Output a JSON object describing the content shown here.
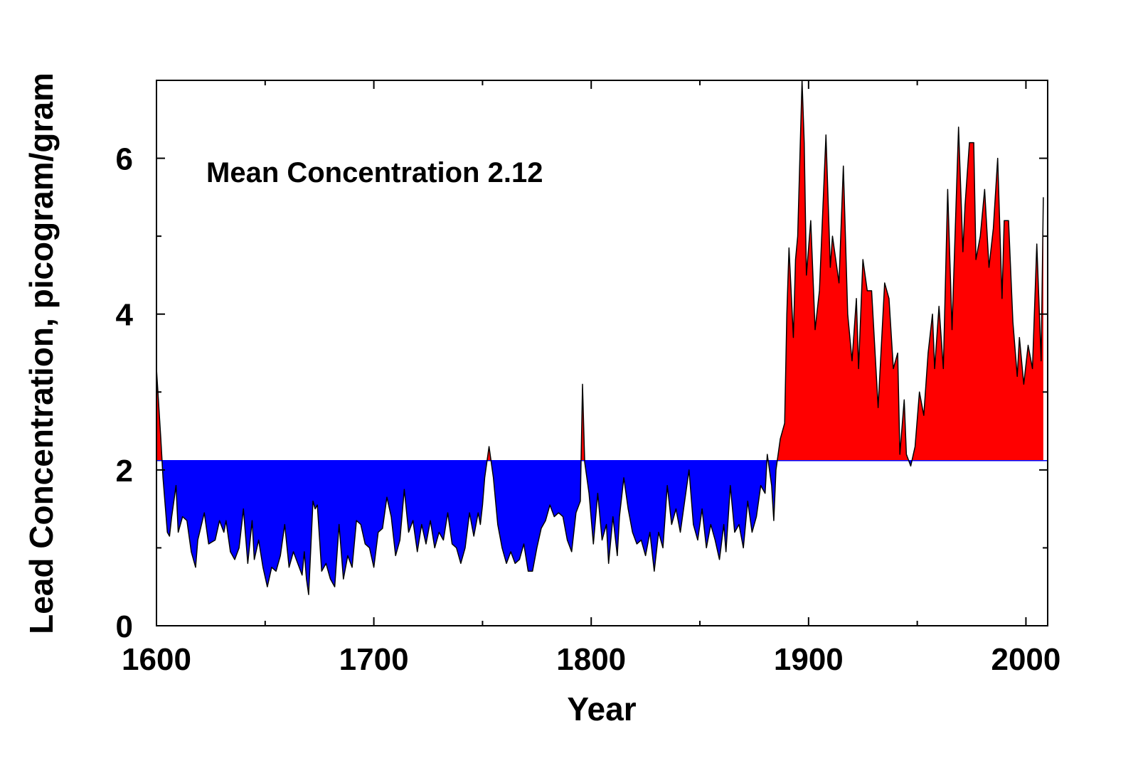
{
  "chart_data": {
    "type": "area",
    "annotation": "Mean Concentration 2.12",
    "xlabel": "Year",
    "ylabel": "Lead Concentration, picogram/gram",
    "mean": 2.12,
    "color": "#000000",
    "above_color": "#ff0000",
    "below_color": "#0000ff",
    "mean_color": "#0000ff",
    "xlim": [
      1600,
      2010
    ],
    "xticks": [
      1600,
      1700,
      1800,
      1900,
      2000
    ],
    "xminor_ticks": [
      1650,
      1750,
      1850,
      1950
    ],
    "ylim": [
      0,
      7
    ],
    "yticks": [
      0,
      2,
      4,
      6
    ],
    "yminor_ticks": [
      1,
      3,
      5
    ],
    "x": [
      1600,
      1602,
      1603,
      1605,
      1606,
      1607,
      1609,
      1610,
      1612,
      1614,
      1616,
      1618,
      1619,
      1622,
      1624,
      1627,
      1629,
      1631,
      1632,
      1634,
      1636,
      1638,
      1640,
      1642,
      1644,
      1645,
      1647,
      1649,
      1651,
      1653,
      1655,
      1657,
      1659,
      1661,
      1663,
      1665,
      1667,
      1668,
      1669,
      1670,
      1672,
      1673,
      1674,
      1676,
      1678,
      1680,
      1682,
      1684,
      1686,
      1688,
      1690,
      1692,
      1694,
      1696,
      1698,
      1700,
      1702,
      1704,
      1706,
      1708,
      1710,
      1712,
      1714,
      1716,
      1718,
      1720,
      1722,
      1724,
      1726,
      1728,
      1730,
      1732,
      1734,
      1736,
      1738,
      1740,
      1742,
      1744,
      1746,
      1748,
      1749,
      1750,
      1751,
      1753,
      1755,
      1757,
      1759,
      1761,
      1763,
      1765,
      1767,
      1769,
      1771,
      1773,
      1775,
      1777,
      1779,
      1781,
      1783,
      1785,
      1787,
      1789,
      1791,
      1793,
      1795,
      1796,
      1797,
      1799,
      1801,
      1803,
      1805,
      1807,
      1808,
      1810,
      1812,
      1813,
      1815,
      1817,
      1819,
      1821,
      1823,
      1825,
      1827,
      1829,
      1831,
      1833,
      1835,
      1837,
      1839,
      1841,
      1843,
      1845,
      1847,
      1849,
      1851,
      1853,
      1855,
      1857,
      1859,
      1861,
      1862,
      1864,
      1866,
      1868,
      1870,
      1872,
      1874,
      1876,
      1878,
      1880,
      1881,
      1883,
      1884,
      1885,
      1887,
      1889,
      1890,
      1891,
      1893,
      1894,
      1895,
      1897,
      1898,
      1899,
      1901,
      1903,
      1905,
      1908,
      1910,
      1911,
      1914,
      1916,
      1918,
      1920,
      1922,
      1923,
      1925,
      1927,
      1929,
      1932,
      1935,
      1937,
      1939,
      1941,
      1942,
      1944,
      1945,
      1947,
      1949,
      1951,
      1953,
      1955,
      1957,
      1958,
      1960,
      1962,
      1964,
      1966,
      1969,
      1971,
      1972,
      1974,
      1976,
      1977,
      1979,
      1981,
      1983,
      1985,
      1987,
      1989,
      1990,
      1992,
      1994,
      1996,
      1997,
      1999,
      2001,
      2003,
      2005,
      2007,
      2008
    ],
    "values": [
      3.3,
      2.4,
      1.9,
      1.2,
      1.15,
      1.4,
      1.8,
      1.2,
      1.4,
      1.35,
      0.95,
      0.75,
      1.1,
      1.45,
      1.05,
      1.1,
      1.35,
      1.2,
      1.35,
      0.95,
      0.85,
      1.0,
      1.5,
      0.8,
      1.35,
      0.85,
      1.1,
      0.75,
      0.5,
      0.75,
      0.7,
      0.9,
      1.3,
      0.75,
      0.95,
      0.8,
      0.65,
      0.95,
      0.6,
      0.4,
      1.6,
      1.5,
      1.55,
      0.7,
      0.8,
      0.6,
      0.5,
      1.3,
      0.6,
      0.9,
      0.75,
      1.35,
      1.3,
      1.05,
      1.0,
      0.75,
      1.2,
      1.25,
      1.65,
      1.4,
      0.9,
      1.1,
      1.75,
      1.2,
      1.35,
      0.95,
      1.3,
      1.05,
      1.35,
      1.0,
      1.2,
      1.1,
      1.45,
      1.05,
      1.0,
      0.8,
      1.0,
      1.45,
      1.15,
      1.45,
      1.3,
      1.55,
      1.9,
      2.3,
      1.9,
      1.3,
      1.0,
      0.8,
      0.95,
      0.8,
      0.85,
      1.05,
      0.7,
      0.7,
      1.0,
      1.25,
      1.35,
      1.55,
      1.4,
      1.45,
      1.4,
      1.1,
      0.95,
      1.45,
      1.6,
      3.1,
      2.1,
      1.7,
      1.05,
      1.7,
      1.1,
      1.3,
      0.8,
      1.4,
      0.9,
      1.4,
      1.9,
      1.5,
      1.2,
      1.05,
      1.1,
      0.9,
      1.2,
      0.7,
      1.2,
      1.0,
      1.8,
      1.3,
      1.5,
      1.2,
      1.6,
      2.0,
      1.3,
      1.1,
      1.5,
      1.0,
      1.3,
      1.1,
      0.85,
      1.3,
      0.95,
      1.8,
      1.2,
      1.3,
      1.0,
      1.6,
      1.2,
      1.4,
      1.8,
      1.7,
      2.2,
      1.8,
      1.35,
      2.0,
      2.4,
      2.6,
      4.0,
      4.85,
      3.7,
      4.7,
      5.0,
      7.0,
      6.2,
      4.5,
      5.2,
      3.8,
      4.3,
      6.3,
      4.6,
      5.0,
      4.4,
      5.9,
      4.0,
      3.4,
      4.2,
      3.3,
      4.7,
      4.3,
      4.3,
      2.8,
      4.4,
      4.2,
      3.3,
      3.5,
      2.2,
      2.9,
      2.2,
      2.05,
      2.3,
      3.0,
      2.7,
      3.5,
      4.0,
      3.3,
      4.1,
      3.3,
      5.6,
      3.8,
      6.4,
      4.8,
      5.4,
      6.2,
      6.2,
      4.7,
      5.0,
      5.6,
      4.6,
      5.1,
      6.0,
      4.2,
      5.2,
      5.2,
      3.9,
      3.2,
      3.7,
      3.1,
      3.6,
      3.3,
      4.9,
      3.4,
      5.5
    ]
  }
}
